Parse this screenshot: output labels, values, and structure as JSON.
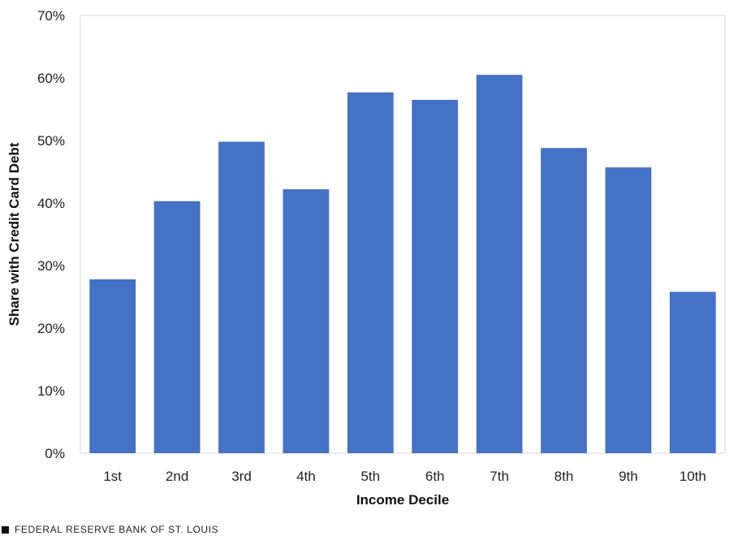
{
  "chart_data": {
    "type": "bar",
    "categories": [
      "1st",
      "2nd",
      "3rd",
      "4th",
      "5th",
      "6th",
      "7th",
      "8th",
      "9th",
      "10th"
    ],
    "values": [
      27.8,
      40.3,
      49.8,
      42.2,
      57.7,
      56.5,
      60.5,
      48.8,
      45.7,
      25.8
    ],
    "title": "",
    "xlabel": "Income Decile",
    "ylabel": "Share with Credit Card Debt",
    "ylim": [
      0,
      70
    ],
    "yticks": [
      0,
      10,
      20,
      30,
      40,
      50,
      60,
      70
    ],
    "ytick_labels": [
      "0%",
      "10%",
      "20%",
      "30%",
      "40%",
      "50%",
      "60%",
      "70%"
    ],
    "bar_color": "#4472C4",
    "grid": false
  },
  "footer": {
    "source": "FEDERAL RESERVE BANK OF ST. LOUIS"
  }
}
